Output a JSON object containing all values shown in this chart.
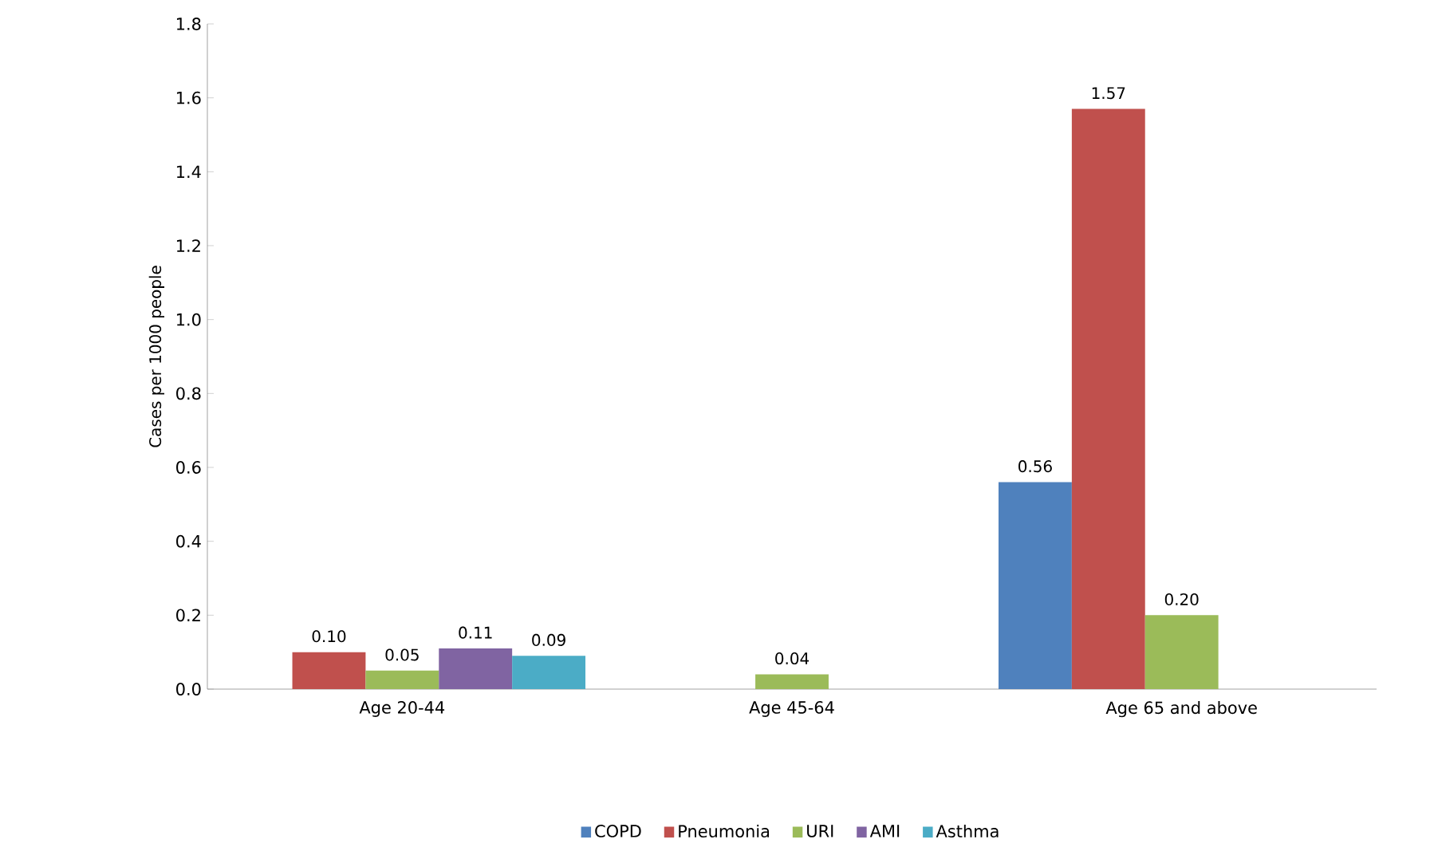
{
  "chart_data": {
    "type": "bar",
    "ylabel": "Cases per 1000 people",
    "categories": [
      "Age 20-44",
      "Age 45-64",
      "Age 65 and above"
    ],
    "series": [
      {
        "name": "COPD",
        "color": "#4f81bd",
        "values": [
          null,
          null,
          0.56
        ],
        "value_labels": [
          null,
          null,
          "0.56"
        ]
      },
      {
        "name": "Pneumonia",
        "color": "#c0504d",
        "values": [
          0.1,
          null,
          1.57
        ],
        "value_labels": [
          "0.10",
          null,
          "1.57"
        ]
      },
      {
        "name": "URI",
        "color": "#9bbb59",
        "values": [
          0.05,
          0.04,
          0.2
        ],
        "value_labels": [
          "0.05",
          "0.04",
          "0.20"
        ]
      },
      {
        "name": "AMI",
        "color": "#8064a2",
        "values": [
          0.11,
          null,
          null
        ],
        "value_labels": [
          "0.11",
          null,
          null
        ]
      },
      {
        "name": "Asthma",
        "color": "#4bacc6",
        "values": [
          0.09,
          null,
          null
        ],
        "value_labels": [
          "0.09",
          null,
          null
        ]
      }
    ],
    "ylim": [
      0,
      1.8
    ],
    "yticks": [
      {
        "value": 0,
        "label": "0.0"
      },
      {
        "value": 0.2,
        "label": "0.2"
      },
      {
        "value": 0.4,
        "label": "0.4"
      },
      {
        "value": 0.6,
        "label": "0.6"
      },
      {
        "value": 0.8,
        "label": "0.8"
      },
      {
        "value": 1.0,
        "label": "1.0"
      },
      {
        "value": 1.2,
        "label": "1.2"
      },
      {
        "value": 1.4,
        "label": "1.4"
      },
      {
        "value": 1.6,
        "label": "1.6"
      },
      {
        "value": 1.8,
        "label": "1.8"
      }
    ],
    "grid": false,
    "legend": "bottom"
  }
}
